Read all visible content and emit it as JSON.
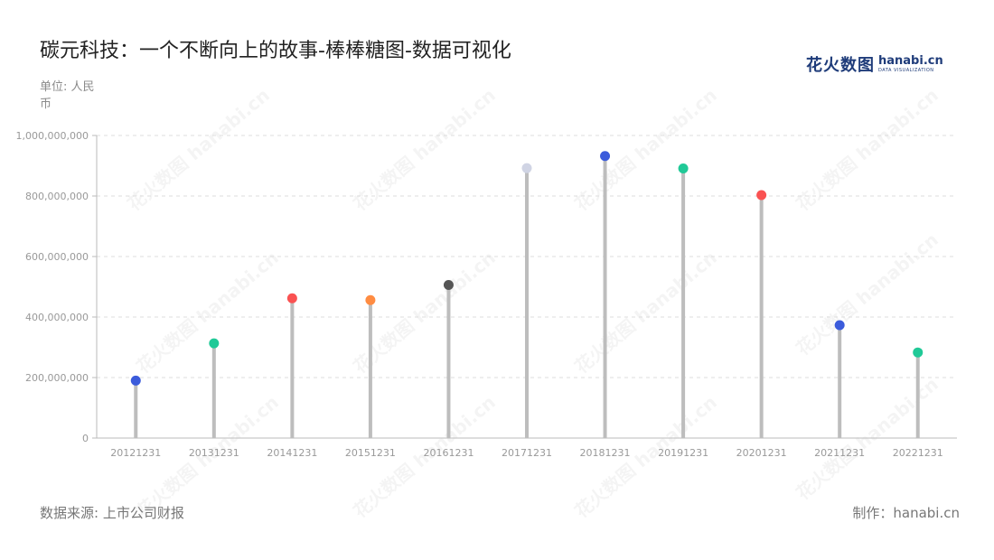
{
  "title": "碳元科技：一个不断向上的故事-棒棒糖图-数据可视化",
  "unit_label": "单位: 人民币",
  "source_label": "数据来源: 上市公司财报",
  "maker_label": "制作：hanabi.cn",
  "logo": {
    "cn": "花火数图",
    "en": "hanabi.cn",
    "sub": "DATA VISUALIZATION"
  },
  "watermark_text": "花火数图 hanabi.cn",
  "chart_data": {
    "type": "lollipop",
    "categories": [
      "20121231",
      "20131231",
      "20141231",
      "20151231",
      "20161231",
      "20171231",
      "20181231",
      "20191231",
      "20201231",
      "20211231",
      "20221231"
    ],
    "values": [
      190000000,
      313000000,
      462000000,
      456000000,
      506000000,
      892000000,
      932000000,
      891000000,
      803000000,
      373000000,
      283000000
    ],
    "dot_colors": [
      "#3b5bdb",
      "#20c997",
      "#fa5252",
      "#ff8c42",
      "#555555",
      "#d0d4e4",
      "#3b5bdb",
      "#20c997",
      "#fa5252",
      "#3b5bdb",
      "#20c997"
    ],
    "ylim": [
      0,
      1000000000
    ],
    "yticks": [
      0,
      200000000,
      400000000,
      600000000,
      800000000,
      1000000000
    ],
    "ytick_labels": [
      "0",
      "200,000,000",
      "400,000,000",
      "600,000,000",
      "800,000,000",
      "1,000,000,000"
    ],
    "stem_color": "#bdbdbd",
    "grid": true
  }
}
